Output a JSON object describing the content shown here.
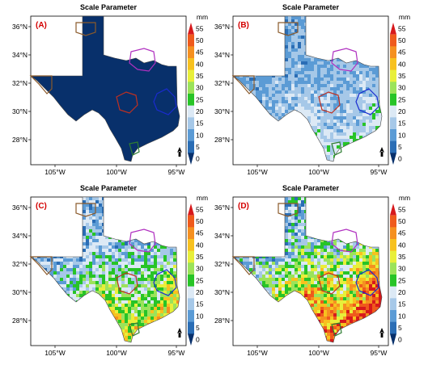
{
  "panel_title": "Scale Parameter",
  "panels": [
    {
      "label": "(A)",
      "intensity": 0.0
    },
    {
      "label": "(B)",
      "intensity": 0.18
    },
    {
      "label": "(C)",
      "intensity": 0.55
    },
    {
      "label": "(D)",
      "intensity": 0.85
    }
  ],
  "lat_ticks": [
    "36°N",
    "34°N",
    "32°N",
    "30°N",
    "28°N"
  ],
  "lon_ticks": [
    "105°W",
    "100°W",
    "95°W"
  ],
  "colorbar": {
    "unit": "mm",
    "ticks": [
      "55",
      "50",
      "45",
      "40",
      "35",
      "30",
      "25",
      "20",
      "15",
      "10",
      "5",
      "0"
    ],
    "colors": [
      "#08306b",
      "#2a6db5",
      "#5b9bd5",
      "#a6c8e8",
      "#dce9f5",
      "#27c427",
      "#9be35a",
      "#e8ef3a",
      "#f7c11f",
      "#f59020",
      "#ef5a1c",
      "#d7191c"
    ]
  }
}
